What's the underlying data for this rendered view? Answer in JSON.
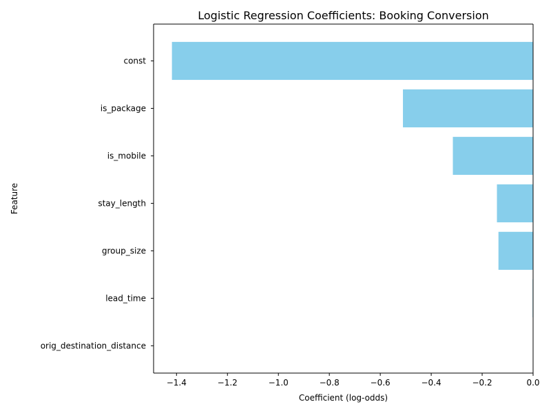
{
  "chart_data": {
    "type": "bar",
    "orientation": "horizontal",
    "title": "Logistic Regression Coefficients: Booking Conversion",
    "xlabel": "Coefficient (log-odds)",
    "ylabel": "Feature",
    "categories": [
      "const",
      "is_package",
      "is_mobile",
      "stay_length",
      "group_size",
      "lead_time",
      "orig_destination_distance"
    ],
    "values": [
      -1.418,
      -0.511,
      -0.315,
      -0.142,
      -0.136,
      -0.002,
      0.0
    ],
    "xlim": [
      -1.49,
      0.0
    ],
    "xticks": [
      -1.4,
      -1.2,
      -1.0,
      -0.8,
      -0.6,
      -0.4,
      -0.2,
      0.0
    ],
    "xtick_labels": [
      "−1.4",
      "−1.2",
      "−1.0",
      "−0.8",
      "−0.6",
      "−0.4",
      "−0.2",
      "0.0"
    ],
    "grid": false,
    "colors": {
      "bar": "#87ceeb",
      "axis": "#000000",
      "text": "#000000"
    }
  }
}
